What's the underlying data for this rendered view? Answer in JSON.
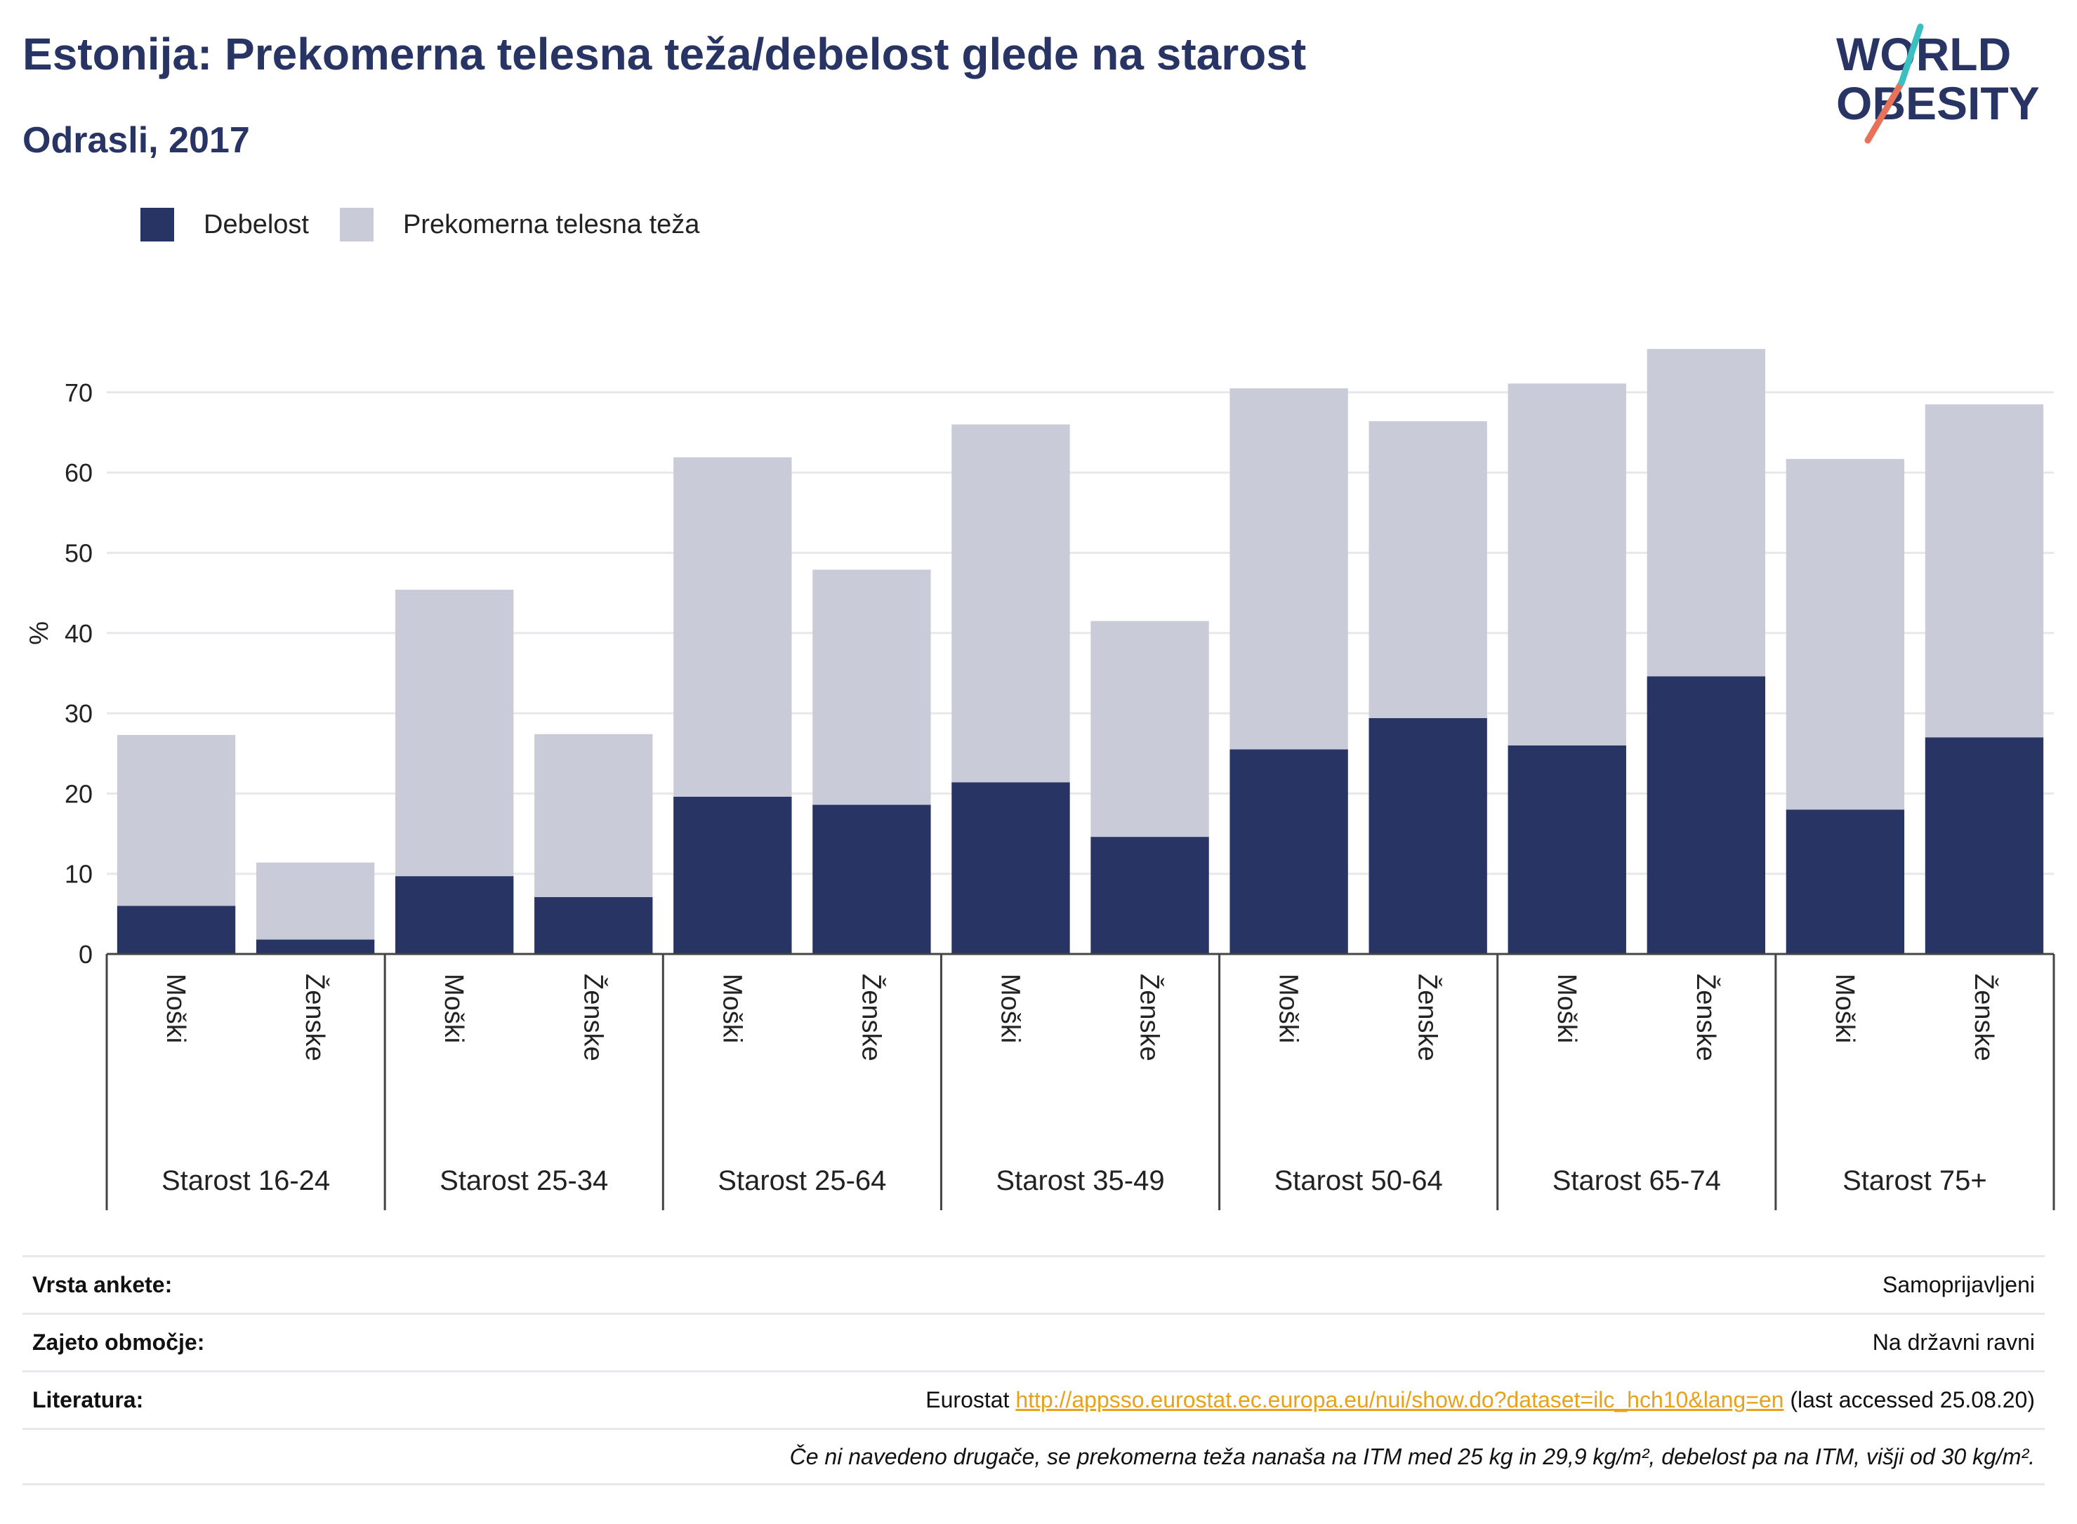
{
  "header": {
    "title": "Estonija: Prekomerna telesna teža/debelost glede na starost",
    "subtitle": "Odrasli, 2017"
  },
  "logo": {
    "line1": "WORLD",
    "line2": "OBESITY"
  },
  "legend": [
    {
      "label": "Debelost",
      "color": "#283463"
    },
    {
      "label": "Prekomerna telesna teža",
      "color": "#c9ccd8"
    }
  ],
  "chart_data": {
    "type": "bar",
    "stacked": true,
    "ylabel": "%",
    "ylim": [
      0,
      78
    ],
    "yticks": [
      0,
      10,
      20,
      30,
      40,
      50,
      60,
      70
    ],
    "grid": true,
    "legend_position": "top-left",
    "groups": [
      "Starost 16-24",
      "Starost 25-34",
      "Starost 25-64",
      "Starost 35-49",
      "Starost 50-64",
      "Starost 65-74",
      "Starost 75+"
    ],
    "subcategories": [
      "Moški",
      "Ženske"
    ],
    "categories": [
      "Moški",
      "Ženske",
      "Moški",
      "Ženske",
      "Moški",
      "Ženske",
      "Moški",
      "Ženske",
      "Moški",
      "Ženske",
      "Moški",
      "Ženske",
      "Moški",
      "Ženske"
    ],
    "series": [
      {
        "name": "Debelost",
        "color": "#283463",
        "values": [
          6.0,
          1.8,
          9.7,
          7.1,
          19.6,
          18.6,
          21.4,
          14.6,
          25.5,
          29.4,
          26.0,
          34.6,
          18.0,
          27.0
        ]
      },
      {
        "name": "Prekomerna telesna teža",
        "color": "#c9ccd8",
        "values": [
          21.3,
          9.6,
          35.7,
          20.3,
          42.3,
          29.3,
          44.6,
          26.9,
          45.0,
          37.0,
          45.1,
          40.8,
          43.7,
          41.5
        ]
      }
    ]
  },
  "meta": {
    "survey_label": "Vrsta ankete:",
    "survey_value": "Samoprijavljeni",
    "area_label": "Zajeto območje:",
    "area_value": "Na državni ravni",
    "lit_label": "Literatura:",
    "lit_prefix": "Eurostat",
    "lit_link": "http://appsso.eurostat.ec.europa.eu/nui/show.do?dataset=ilc_hch10&lang=en",
    "lit_suffix": "(last accessed 25.08.20)",
    "note": "Če ni navedeno drugače, se prekomerna teža nanaša na ITM med 25 kg in 29,9 kg/m², debelost pa na ITM, višji od 30 kg/m²."
  }
}
